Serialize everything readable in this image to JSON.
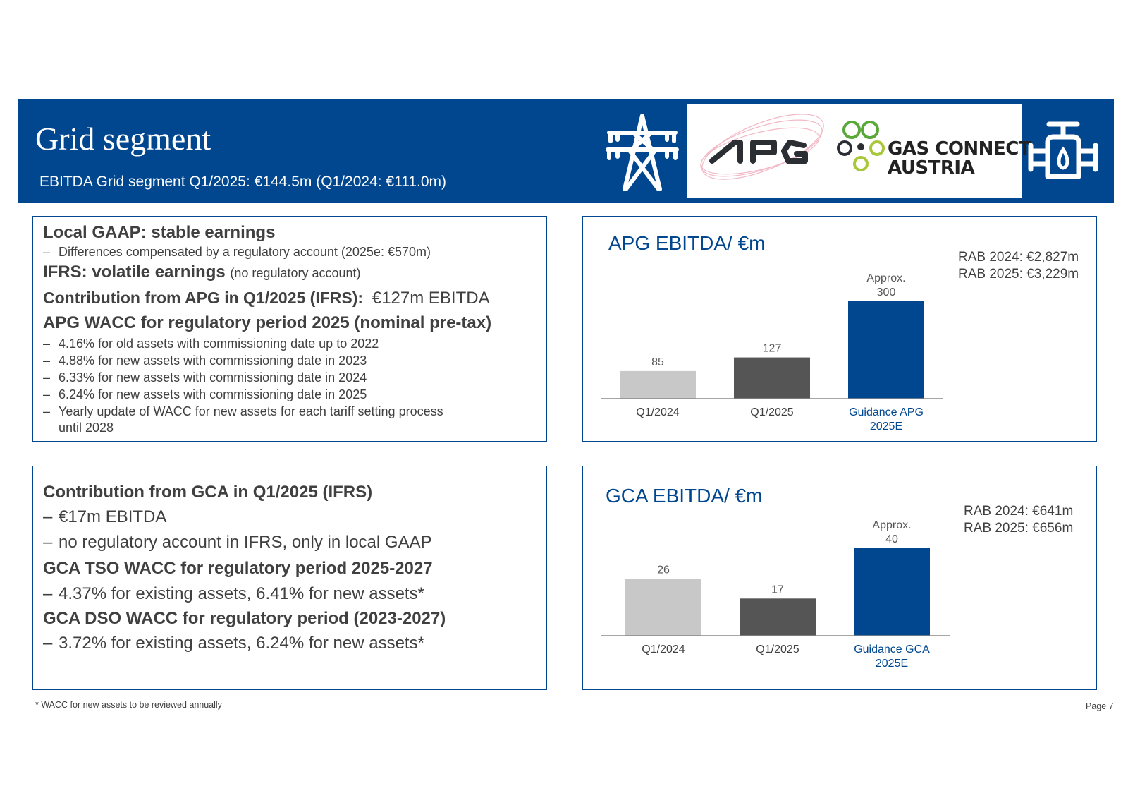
{
  "header": {
    "title": "Grid segment",
    "subtitle": "EBITDA Grid segment Q1/2025: €144.5m (Q1/2024: €111.0m)",
    "logos": {
      "apg_text": "APG",
      "gca_line1": "GAS CONNECT",
      "gca_line2": "AUSTRIA"
    },
    "icons": [
      "power-tower-icon",
      "gas-valve-icon"
    ]
  },
  "panel_apg": {
    "h1": "Local GAAP: stable earnings",
    "b1": "Differences compensated by a regulatory account (2025e: €570m)",
    "h2": "IFRS: volatile earnings",
    "h2_note": "(no regulatory account)",
    "h3": "Contribution from APG in Q1/2025 (IFRS):",
    "h3_value": "€127m EBITDA",
    "h4": "APG WACC for regulatory period 2025 (nominal pre-tax)",
    "bullets": [
      "4.16% for old assets with commissioning date up to 2022",
      "4.88% for new assets with commissioning date in 2023",
      "6.33% for new assets with commissioning date in 2024",
      "6.24% for new assets with commissioning date in 2025",
      "Yearly update of WACC for new assets for each tariff setting process"
    ],
    "bullet_cont": "until 2028",
    "dash": "–"
  },
  "panel_gca": {
    "h1": "Contribution from GCA in Q1/2025 (IFRS)",
    "b1": "€17m EBITDA",
    "b2": "no regulatory account in IFRS, only in local GAAP",
    "h2": "GCA TSO WACC for regulatory period 2025-2027",
    "b3": "4.37% for existing assets, 6.41% for new assets*",
    "h3": "GCA DSO WACC for regulatory period (2023-2027)",
    "b4": "3.72% for existing assets, 6.24% for new assets*",
    "dash": "–"
  },
  "chart_data": [
    {
      "type": "bar",
      "title": "APG EBITDA/ €m",
      "categories": [
        "Q1/2024",
        "Q1/2025",
        "Guidance APG 2025E"
      ],
      "values": [
        85,
        127,
        300
      ],
      "value_labels": [
        "85",
        "127",
        "Approx. 300"
      ],
      "colors": [
        "#c8c8c8",
        "#555555",
        "#00478f"
      ],
      "rab": [
        "RAB 2024: €2,827m",
        "RAB 2025: €3,229m"
      ],
      "grid": false,
      "legend": "none"
    },
    {
      "type": "bar",
      "title": "GCA EBITDA/ €m",
      "categories": [
        "Q1/2024",
        "Q1/2025",
        "Guidance GCA 2025E"
      ],
      "values": [
        26,
        17,
        40
      ],
      "value_labels": [
        "26",
        "17",
        "Approx. 40"
      ],
      "colors": [
        "#c8c8c8",
        "#555555",
        "#00478f"
      ],
      "rab": [
        "RAB 2024: €641m",
        "RAB 2025: €656m"
      ],
      "grid": false,
      "legend": "none"
    }
  ],
  "footer": {
    "note": "* WACC for new assets to be reviewed annually",
    "page": "Page 7"
  }
}
